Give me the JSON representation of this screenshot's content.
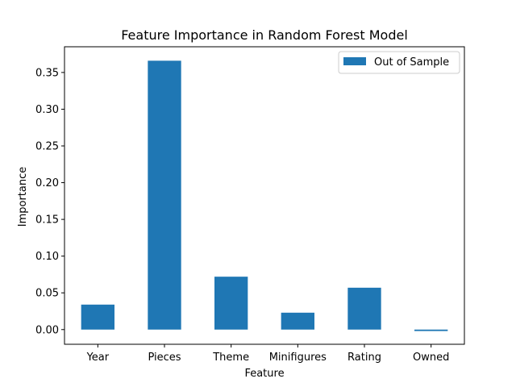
{
  "chart_data": {
    "type": "bar",
    "title": "Feature Importance in Random Forest Model",
    "xlabel": "Feature",
    "ylabel": "Importance",
    "categories": [
      "Year",
      "Pieces",
      "Theme",
      "Minifigures",
      "Rating",
      "Owned"
    ],
    "series": [
      {
        "name": "Out of Sample",
        "color": "#1f77b4",
        "values": [
          0.034,
          0.366,
          0.072,
          0.023,
          0.057,
          -0.002
        ]
      }
    ],
    "ylim": [
      -0.02,
      0.385
    ],
    "yticks": [
      0.0,
      0.05,
      0.1,
      0.15,
      0.2,
      0.25,
      0.3,
      0.35
    ],
    "ytick_labels": [
      "0.00",
      "0.05",
      "0.10",
      "0.15",
      "0.20",
      "0.25",
      "0.30",
      "0.35"
    ],
    "grid": false,
    "legend_position": "top-right"
  }
}
